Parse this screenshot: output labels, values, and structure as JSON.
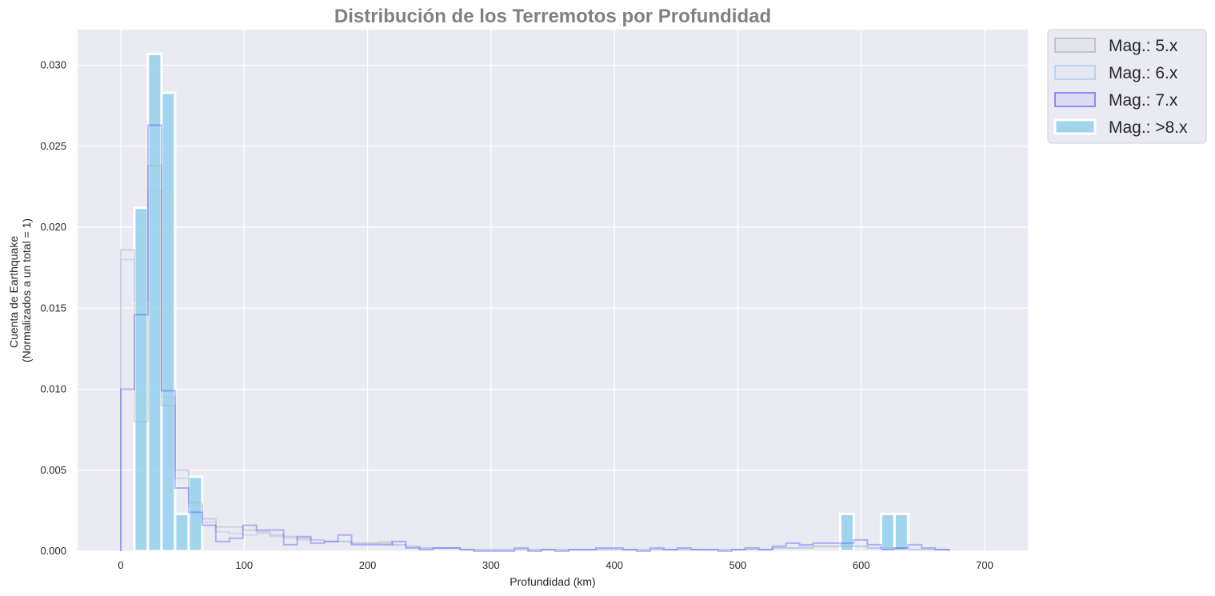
{
  "chart_data": {
    "type": "histogram",
    "title": "Distribución de los Terremotos por Profundidad",
    "xlabel": "Profundidad (km)",
    "ylabel_lines": [
      "Cuenta de Earthquake",
      "(Normalizados a un total = 1)"
    ],
    "xlim": [
      -35,
      735
    ],
    "ylim": [
      0,
      0.0322
    ],
    "x_ticks": [
      0,
      100,
      200,
      300,
      400,
      500,
      600,
      700
    ],
    "x_tick_labels": [
      "0",
      "100",
      "200",
      "300",
      "400",
      "500",
      "600",
      "700"
    ],
    "y_ticks": [
      0,
      0.005,
      0.01,
      0.015,
      0.02,
      0.025,
      0.03
    ],
    "y_tick_labels": [
      "0.000",
      "0.005",
      "0.010",
      "0.015",
      "0.020",
      "0.025",
      "0.030"
    ],
    "grid": true,
    "legend_position": "outside-top-right",
    "series": [
      {
        "name": "Mag.: 5.x",
        "style": "step",
        "color": "#b0b0b0",
        "opacity": 0.45,
        "bin_edges": [
          0,
          11,
          22,
          33,
          44,
          55,
          66,
          77,
          88,
          99,
          110,
          121,
          132,
          143,
          154,
          165,
          176,
          187,
          198,
          209,
          220,
          231,
          242,
          253,
          264,
          275,
          286,
          297,
          308,
          319,
          330,
          341,
          352,
          363,
          374,
          385,
          396,
          407,
          418,
          429,
          440,
          451,
          462,
          473,
          484,
          495,
          506,
          517,
          528,
          539,
          550,
          561,
          572,
          583,
          594,
          605,
          616,
          627,
          638,
          649,
          660,
          671
        ],
        "values": [
          0.0186,
          0.008,
          0.0238,
          0.009,
          0.005,
          0.003,
          0.002,
          0.0015,
          0.0015,
          0.0013,
          0.0012,
          0.001,
          0.0009,
          0.0008,
          0.0007,
          0.0006,
          0.0006,
          0.0005,
          0.0005,
          0.0005,
          0.0004,
          0.0003,
          0.0002,
          0.0002,
          0.0002,
          0.0001,
          0.0001,
          0.0001,
          0.0001,
          0.0001,
          0.0001,
          0.0001,
          0.0001,
          0.0001,
          0.0001,
          0.0001,
          0.0001,
          0.0001,
          0.0001,
          0.0001,
          0.0001,
          0.0001,
          0.0001,
          0.0001,
          0.0001,
          0.0001,
          0.0001,
          0.0001,
          0.0002,
          0.0002,
          0.0002,
          0.0003,
          0.0003,
          0.0003,
          0.0003,
          0.0002,
          0.0002,
          0.0002,
          0.0001,
          0.0001,
          0.0001
        ]
      },
      {
        "name": "Mag.: 6.x",
        "style": "step",
        "color": "#a8c8ea",
        "opacity": 0.45,
        "bin_edges": [
          0,
          11,
          22,
          33,
          44,
          55,
          66,
          77,
          88,
          99,
          110,
          121,
          132,
          143,
          154,
          165,
          176,
          187,
          198,
          209,
          220,
          231,
          242,
          253,
          264,
          275,
          286,
          297,
          308,
          319,
          330,
          341,
          352,
          363,
          374,
          385,
          396,
          407,
          418,
          429,
          440,
          451,
          462,
          473,
          484,
          495,
          506,
          517,
          528,
          539,
          550,
          561,
          572,
          583,
          594,
          605,
          616,
          627,
          638,
          649,
          660,
          671
        ],
        "values": [
          0.018,
          0.0155,
          0.0222,
          0.0095,
          0.0045,
          0.0028,
          0.0018,
          0.0012,
          0.0011,
          0.001,
          0.0011,
          0.0009,
          0.0008,
          0.0007,
          0.0007,
          0.0006,
          0.0006,
          0.0005,
          0.0005,
          0.0006,
          0.0004,
          0.0003,
          0.0002,
          0.0002,
          0.0002,
          0.0001,
          0.0001,
          0.0001,
          0.0001,
          0.0001,
          0.0001,
          0.0001,
          0.0001,
          0.0001,
          0.0001,
          0.0001,
          0.0001,
          0.0001,
          0.0001,
          0.0001,
          0.0001,
          0.0001,
          0.0001,
          0.0001,
          0.0001,
          0.0001,
          0.0001,
          0.0001,
          0.0002,
          0.0002,
          0.0003,
          0.0003,
          0.0003,
          0.0004,
          0.0003,
          0.0002,
          0.0002,
          0.0001,
          0.0001,
          0.0001,
          0.0001
        ]
      },
      {
        "name": "Mag.: 7.x",
        "style": "step",
        "color": "#4040ff",
        "opacity": 0.35,
        "bin_edges": [
          0,
          11,
          22,
          33,
          44,
          55,
          66,
          77,
          88,
          99,
          110,
          121,
          132,
          143,
          154,
          165,
          176,
          187,
          198,
          209,
          220,
          231,
          242,
          253,
          264,
          275,
          286,
          297,
          308,
          319,
          330,
          341,
          352,
          363,
          374,
          385,
          396,
          407,
          418,
          429,
          440,
          451,
          462,
          473,
          484,
          495,
          506,
          517,
          528,
          539,
          550,
          561,
          572,
          583,
          594,
          605,
          616,
          627,
          638,
          649,
          660,
          671
        ],
        "values": [
          0.01,
          0.0146,
          0.0263,
          0.0099,
          0.0039,
          0.0024,
          0.0016,
          0.0006,
          0.0008,
          0.0016,
          0.0013,
          0.0013,
          0.0004,
          0.0009,
          0.0005,
          0.0006,
          0.001,
          0.0004,
          0.0004,
          0.0004,
          0.0006,
          0.0002,
          0.0001,
          0.0002,
          0.0002,
          0.0001,
          0.0,
          0.0,
          0.0,
          0.0002,
          0.0,
          0.0001,
          0.0,
          0.0001,
          0.0001,
          0.0002,
          0.0002,
          0.0001,
          0.0,
          0.0002,
          0.0001,
          0.0002,
          0.0001,
          0.0001,
          0.0,
          0.0001,
          0.0002,
          0.0001,
          0.0003,
          0.0005,
          0.0004,
          0.0005,
          0.0005,
          0.0005,
          0.0007,
          0.0004,
          0.0001,
          0.0002,
          0.0004,
          0.0002,
          0.0001
        ]
      },
      {
        "name": "Mag.: >8.x",
        "style": "filled",
        "color": "#87ceeb",
        "opacity": 0.75,
        "edge_color": "#ffffff",
        "bin_edges": [
          11,
          22,
          33,
          44,
          55,
          66,
          77,
          88,
          99,
          110,
          121,
          132,
          143,
          154,
          165,
          176,
          187,
          198,
          209,
          220,
          231,
          242,
          253,
          264,
          275,
          286,
          297,
          308,
          319,
          330,
          341,
          352,
          363,
          374,
          385,
          396,
          407,
          418,
          429,
          440,
          451,
          462,
          473,
          484,
          495,
          506,
          517,
          528,
          539,
          550,
          561,
          572,
          583,
          594,
          605,
          616,
          627,
          638,
          649
        ],
        "values": [
          0.0212,
          0.0307,
          0.0283,
          0.0023,
          0.0046,
          0,
          0,
          0,
          0,
          0,
          0,
          0,
          0,
          0,
          0,
          0,
          0,
          0,
          0,
          0,
          0,
          0,
          0,
          0,
          0,
          0,
          0,
          0,
          0,
          0,
          0,
          0,
          0,
          0,
          0,
          0,
          0,
          0,
          0,
          0,
          0,
          0,
          0,
          0,
          0,
          0,
          0,
          0,
          0,
          0,
          0,
          0,
          0.0023,
          0,
          0,
          0.0023,
          0.0023,
          0
        ]
      }
    ]
  },
  "colors": {
    "plot_background": "#eaeaf2",
    "grid": "#ffffff",
    "title": "#808080",
    "text": "#262626",
    "legend_background": "#eaeaf2",
    "legend_border": "#d0d0d8"
  }
}
